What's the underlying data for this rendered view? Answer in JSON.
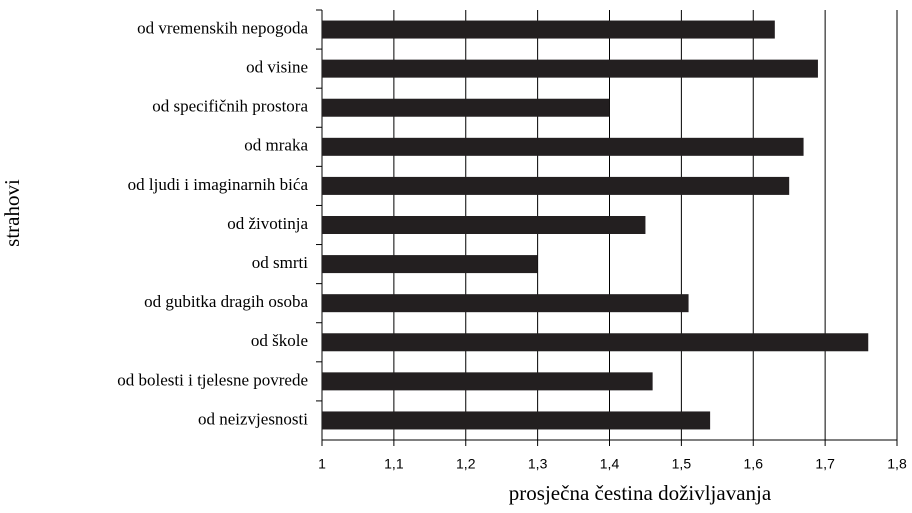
{
  "chart_data": {
    "type": "barh",
    "xlabel": "prosječna čestina doživljavanja",
    "ylabel": "strahovi",
    "categories": [
      "od vremenskih nepogoda",
      "od visine",
      "od specifičnih prostora",
      "od mraka",
      "od ljudi i imaginarnih bića",
      "od životinja",
      "od smrti",
      "od gubitka dragih osoba",
      "od škole",
      "od bolesti i tjelesne povrede",
      "od neizvjesnosti"
    ],
    "values": [
      1.63,
      1.69,
      1.4,
      1.67,
      1.65,
      1.45,
      1.3,
      1.51,
      1.76,
      1.46,
      1.54
    ],
    "color": "#231f20",
    "xlim": [
      1,
      1.8
    ],
    "xticks": [
      {
        "value": 1,
        "label": "1"
      },
      {
        "value": 1.1,
        "label": "1,1"
      },
      {
        "value": 1.2,
        "label": "1,2"
      },
      {
        "value": 1.3,
        "label": "1,3"
      },
      {
        "value": 1.4,
        "label": "1,4"
      },
      {
        "value": 1.5,
        "label": "1,5"
      },
      {
        "value": 1.6,
        "label": "1,6"
      },
      {
        "value": 1.7,
        "label": "1,7"
      },
      {
        "value": 1.8,
        "label": "1,8"
      }
    ],
    "grid": true
  }
}
